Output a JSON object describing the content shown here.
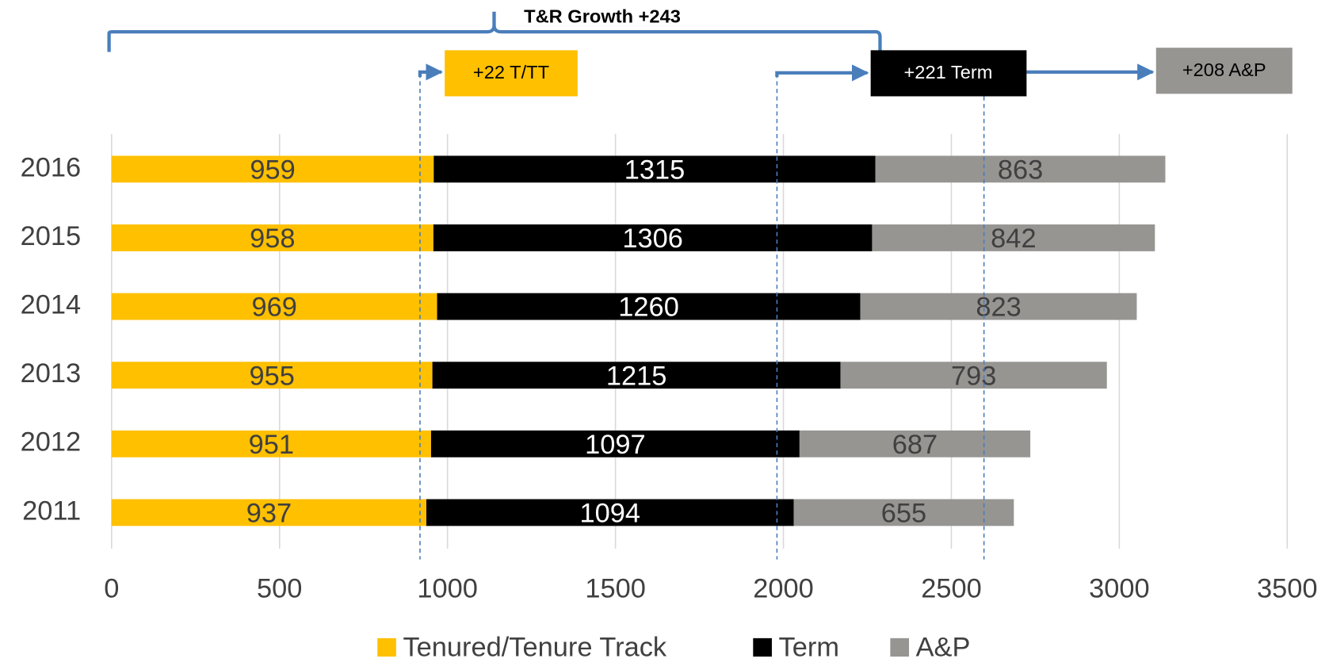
{
  "chart_data": {
    "type": "stacked-barh",
    "categories": [
      "2011",
      "2012",
      "2013",
      "2014",
      "2015",
      "2016"
    ],
    "series": [
      {
        "name": "Tenured/Tenure Track",
        "color": "#ffc000",
        "values": [
          937,
          951,
          955,
          969,
          958,
          959
        ]
      },
      {
        "name": "Term",
        "color": "#000000",
        "values": [
          1094,
          1097,
          1215,
          1260,
          1306,
          1315
        ]
      },
      {
        "name": "A&P",
        "color": "#969592",
        "values": [
          655,
          687,
          793,
          823,
          842,
          863
        ]
      }
    ],
    "xlim": [
      0,
      3500
    ],
    "xticks": [
      0,
      500,
      1000,
      1500,
      2000,
      2500,
      3000,
      3500
    ],
    "grid": true,
    "legend": "bottom",
    "annotations": [
      "T&R Growth +243",
      "+22 T/TT",
      "+221 Term",
      "+208 A&P"
    ]
  }
}
